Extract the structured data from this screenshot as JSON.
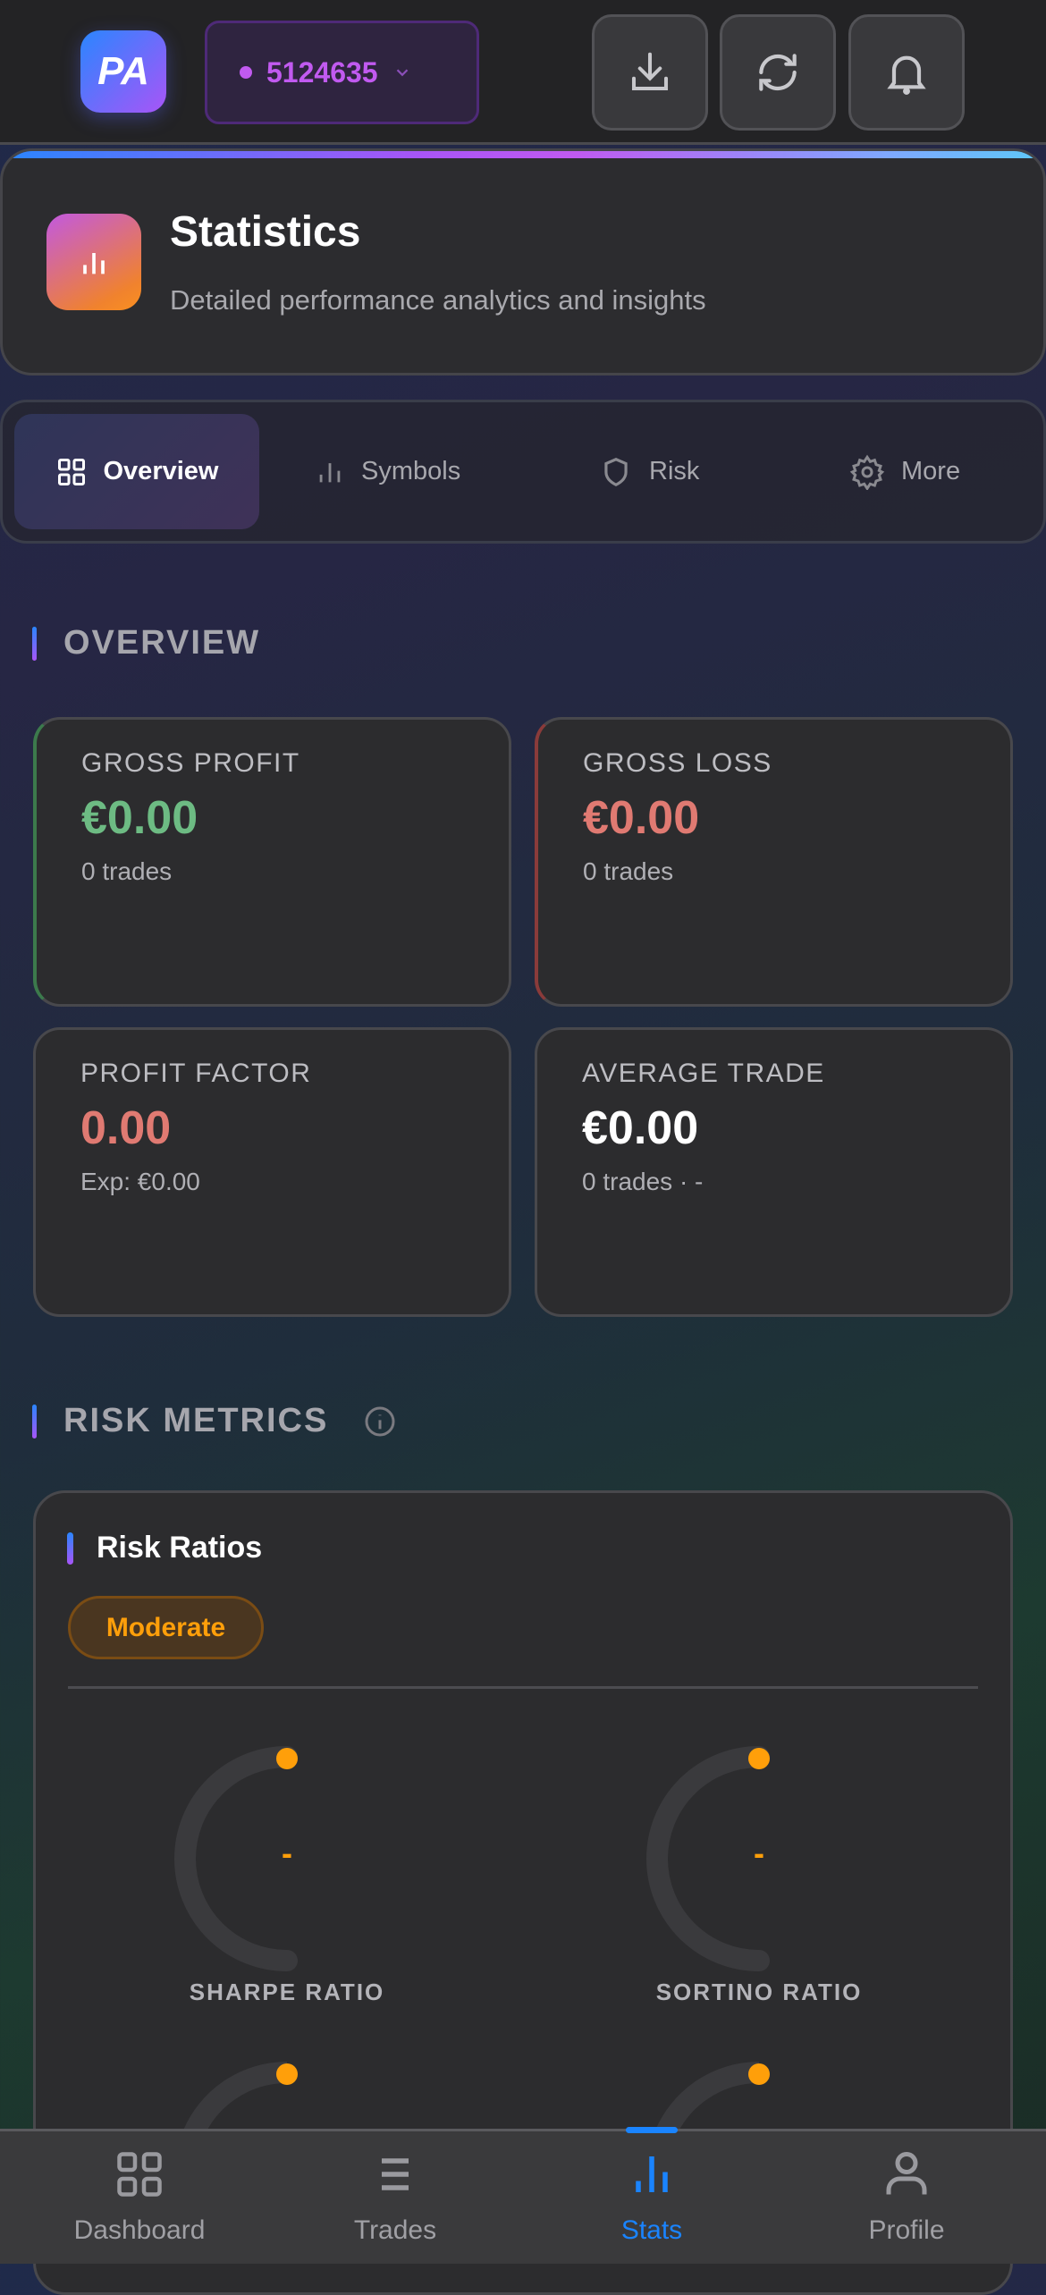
{
  "header": {
    "logo_text": "PA",
    "account_id": "5124635",
    "icons": [
      "download-icon",
      "refresh-icon",
      "bell-icon"
    ]
  },
  "stats_card": {
    "title": "Statistics",
    "subtitle": "Detailed performance analytics and insights"
  },
  "tabs": [
    {
      "label": "Overview",
      "active": true
    },
    {
      "label": "Symbols"
    },
    {
      "label": "Risk"
    },
    {
      "label": "More"
    }
  ],
  "overview": {
    "heading": "OVERVIEW",
    "cards": [
      {
        "label": "GROSS PROFIT",
        "value": "€0.00",
        "sub": "0 trades",
        "color": "#6dbb83"
      },
      {
        "label": "GROSS LOSS",
        "value": "€0.00",
        "sub": "0 trades",
        "color": "#e07a72"
      },
      {
        "label": "PROFIT FACTOR",
        "value": "0.00",
        "sub": "Exp: €0.00",
        "color": "#e07a72"
      },
      {
        "label": "AVERAGE TRADE",
        "value": "€0.00",
        "sub": "0 trades · -",
        "color": "#ffffff"
      }
    ]
  },
  "risk": {
    "heading": "RISK METRICS",
    "card_title": "Risk Ratios",
    "badge": "Moderate",
    "accent": "#ff9f0a",
    "gauges": [
      {
        "label": "SHARPE RATIO",
        "value": "-"
      },
      {
        "label": "SORTINO RATIO",
        "value": "-"
      }
    ]
  },
  "nav": [
    {
      "label": "Dashboard"
    },
    {
      "label": "Trades"
    },
    {
      "label": "Stats",
      "active": true
    },
    {
      "label": "Profile"
    }
  ],
  "colors": {
    "active": "#1a84ff",
    "accent_purple": "#c15af0"
  }
}
